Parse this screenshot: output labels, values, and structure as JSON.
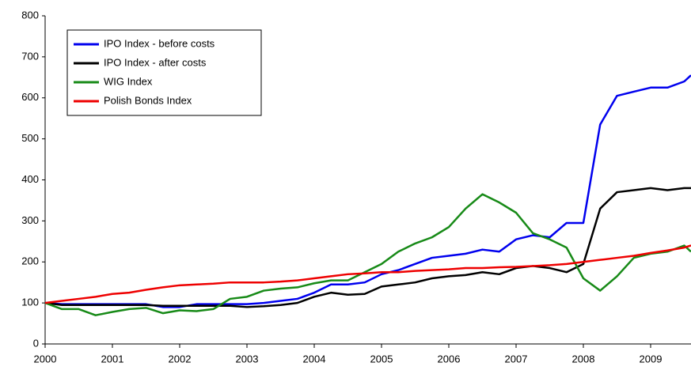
{
  "chart_data": {
    "type": "line",
    "x": [
      2000,
      2000.25,
      2000.5,
      2000.75,
      2001,
      2001.25,
      2001.5,
      2001.75,
      2002,
      2002.25,
      2002.5,
      2002.75,
      2003,
      2003.25,
      2003.5,
      2003.75,
      2004,
      2004.25,
      2004.5,
      2004.75,
      2005,
      2005.25,
      2005.5,
      2005.75,
      2006,
      2006.25,
      2006.5,
      2006.75,
      2007,
      2007.25,
      2007.5,
      2007.75,
      2008,
      2008.25,
      2008.5,
      2008.75,
      2009,
      2009.25,
      2009.5,
      2009.6
    ],
    "series": [
      {
        "name": "IPO Index - before costs",
        "color": "#0000ee",
        "values": [
          100,
          97,
          97,
          97,
          97,
          97,
          97,
          90,
          90,
          97,
          97,
          97,
          97,
          100,
          105,
          110,
          125,
          145,
          145,
          150,
          170,
          180,
          195,
          210,
          215,
          220,
          230,
          225,
          255,
          265,
          260,
          295,
          295,
          535,
          605,
          615,
          625,
          625,
          640,
          655
        ]
      },
      {
        "name": "IPO Index - after costs",
        "color": "#000000",
        "values": [
          100,
          95,
          95,
          95,
          95,
          95,
          95,
          93,
          93,
          93,
          93,
          93,
          90,
          92,
          95,
          100,
          115,
          125,
          120,
          122,
          140,
          145,
          150,
          160,
          165,
          168,
          175,
          170,
          185,
          190,
          185,
          175,
          195,
          330,
          370,
          375,
          380,
          375,
          380,
          380
        ]
      },
      {
        "name": "WIG Index",
        "color": "#178a17",
        "values": [
          100,
          85,
          85,
          70,
          78,
          85,
          88,
          75,
          82,
          80,
          85,
          110,
          115,
          130,
          135,
          138,
          148,
          155,
          155,
          175,
          195,
          225,
          245,
          260,
          285,
          330,
          365,
          345,
          320,
          270,
          255,
          235,
          160,
          130,
          165,
          210,
          220,
          225,
          240,
          225
        ]
      },
      {
        "name": "Polish Bonds Index",
        "color": "#ee0000",
        "values": [
          100,
          105,
          110,
          115,
          122,
          125,
          132,
          138,
          143,
          145,
          147,
          150,
          150,
          150,
          152,
          155,
          160,
          165,
          170,
          172,
          175,
          175,
          178,
          180,
          182,
          185,
          185,
          187,
          188,
          190,
          192,
          195,
          200,
          205,
          210,
          215,
          222,
          228,
          235,
          240
        ]
      }
    ],
    "xlim": [
      2000,
      2009.6
    ],
    "xticks": [
      2000,
      2001,
      2002,
      2003,
      2004,
      2005,
      2006,
      2007,
      2008,
      2009
    ],
    "ylim": [
      0,
      800
    ],
    "yticks": [
      0,
      100,
      200,
      300,
      400,
      500,
      600,
      700,
      800
    ],
    "grid": false,
    "legend": "upper-left"
  }
}
